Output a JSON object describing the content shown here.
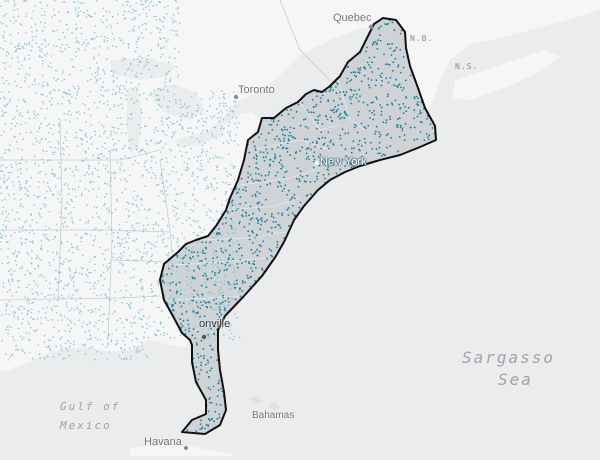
{
  "map": {
    "colors": {
      "ocean": "#ebeced",
      "land": "#f6f6f6",
      "dot_outside": "#8cc6d8",
      "dot_inside": "#177f9f",
      "region_fill": "#cfd3d6",
      "region_outline": "#111111"
    },
    "labels": {
      "quebec": "Quebec",
      "nb": "N.B.",
      "ns": "N.S.",
      "toronto": "Toronto",
      "new_york": "New York",
      "jacksonville": "onville",
      "bahamas": "Bahamas",
      "havana": "Havana",
      "gulf_line1": "Gulf of",
      "gulf_line2": "Mexico",
      "sargasso_line1": "Sargasso",
      "sargasso_line2": "Sea"
    }
  }
}
